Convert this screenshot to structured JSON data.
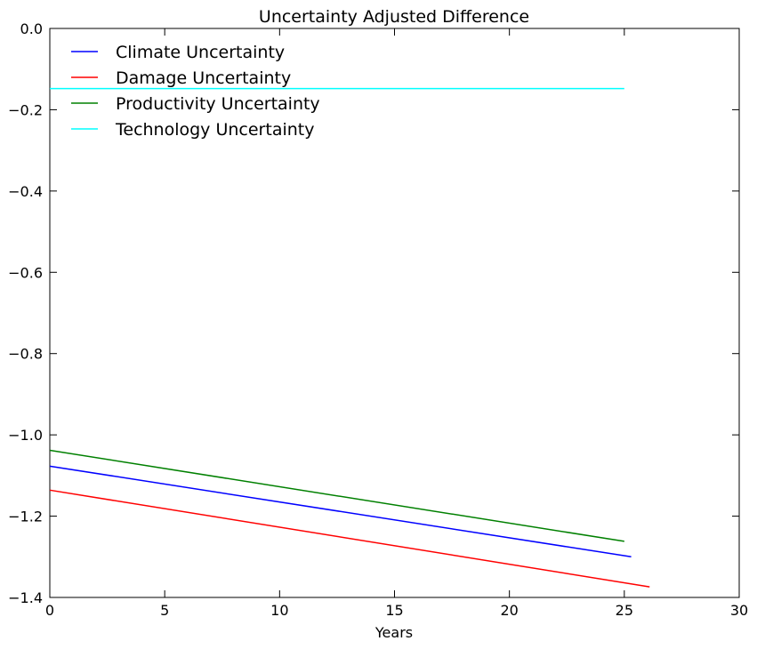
{
  "chart_data": {
    "type": "line",
    "title": "Uncertainty Adjusted Difference",
    "xlabel": "Years",
    "ylabel": "",
    "xlim": [
      0,
      30
    ],
    "ylim": [
      -1.4,
      0.0
    ],
    "xticks": [
      0,
      5,
      10,
      15,
      20,
      25,
      30
    ],
    "xtick_labels": [
      "0",
      "5",
      "10",
      "15",
      "20",
      "25",
      "30"
    ],
    "yticks": [
      0.0,
      -0.2,
      -0.4,
      -0.6,
      -0.8,
      -1.0,
      -1.2,
      -1.4
    ],
    "ytick_labels": [
      "0.0",
      "−0.2",
      "−0.4",
      "−0.6",
      "−0.8",
      "−1.0",
      "−1.2",
      "−1.4"
    ],
    "grid": false,
    "legend_position": "top-left",
    "series": [
      {
        "name": "Climate Uncertainty",
        "color": "#0000ff",
        "x": [
          0,
          25.3
        ],
        "y": [
          -1.077,
          -1.3
        ]
      },
      {
        "name": "Damage Uncertainty",
        "color": "#ff0000",
        "x": [
          0,
          26.1
        ],
        "y": [
          -1.136,
          -1.374
        ]
      },
      {
        "name": "Productivity Uncertainty",
        "color": "#008000",
        "x": [
          0,
          25.0
        ],
        "y": [
          -1.038,
          -1.262
        ]
      },
      {
        "name": "Technology Uncertainty",
        "color": "#00ffff",
        "x": [
          0,
          25.0
        ],
        "y": [
          -0.148,
          -0.148
        ]
      }
    ]
  }
}
